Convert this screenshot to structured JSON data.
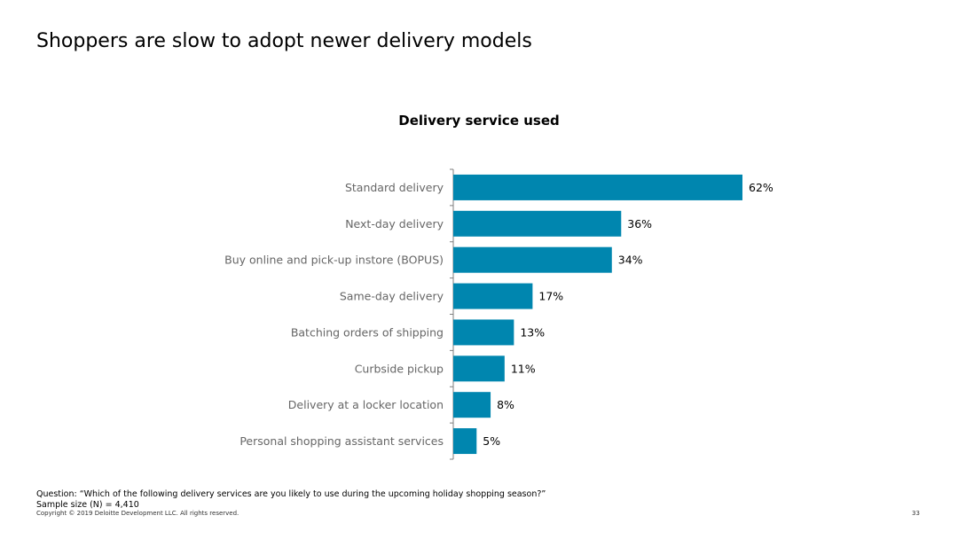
{
  "slide": {
    "title": "Shoppers are slow to adopt newer delivery models",
    "question": "Question: “Which of the following delivery services are you likely to use during the upcoming holiday shopping season?”",
    "sample_size": "Sample size (N) = 4,410",
    "copyright": "Copyright © 2019 Deloitte Development LLC. All rights reserved.",
    "page_number": "33"
  },
  "colors": {
    "bar": "#0086AF",
    "category_text": "#666666",
    "value_text": "#000000",
    "axis": "#7f7f7f"
  },
  "chart_data": {
    "type": "bar",
    "orientation": "horizontal",
    "title": "Delivery service used",
    "categories": [
      "Standard delivery",
      "Next-day delivery",
      "Buy online and pick-up instore (BOPUS)",
      "Same-day delivery",
      "Batching orders of shipping",
      "Curbside pickup",
      "Delivery at a locker location",
      "Personal shopping assistant services"
    ],
    "values": [
      62,
      36,
      34,
      17,
      13,
      11,
      8,
      5
    ],
    "value_labels": [
      "62%",
      "36%",
      "34%",
      "17%",
      "13%",
      "11%",
      "8%",
      "5%"
    ],
    "xlim": [
      0,
      62
    ],
    "grid": false,
    "legend": "none"
  }
}
